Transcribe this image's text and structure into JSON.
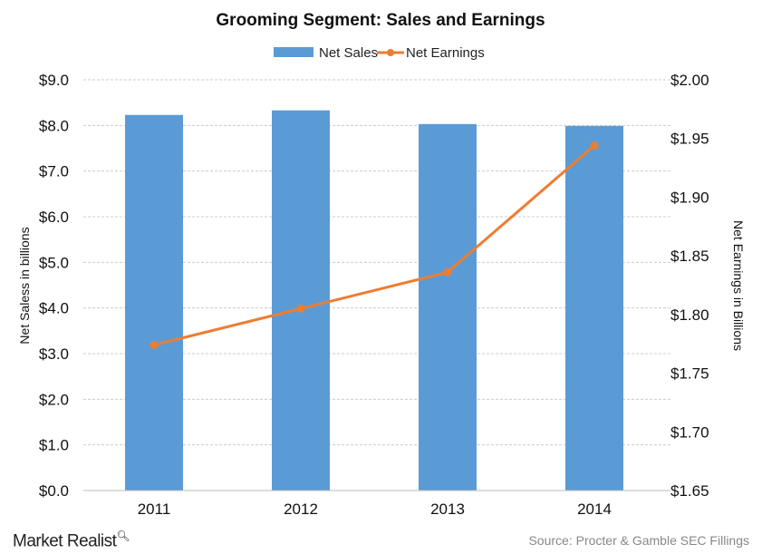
{
  "chart_data": {
    "type": "bar+line",
    "title": "Grooming Segment: Sales and Earnings",
    "categories": [
      "2011",
      "2012",
      "2013",
      "2014"
    ],
    "series": [
      {
        "name": "Net Sales",
        "type": "bar",
        "axis": "left",
        "color": "#5B9BD5",
        "values": [
          8.23,
          8.33,
          8.03,
          7.99
        ]
      },
      {
        "name": "Net Earnings",
        "type": "line",
        "axis": "right",
        "color": "#ED7D31",
        "values": [
          1.774,
          1.805,
          1.836,
          1.944
        ]
      }
    ],
    "ylabel": "Net Saless in billions",
    "y2label": "Net Earnings in Billions",
    "ylim": [
      0,
      9
    ],
    "y2lim": [
      1.65,
      2.0
    ],
    "yticks": [
      "$0.0",
      "$1.0",
      "$2.0",
      "$3.0",
      "$4.0",
      "$5.0",
      "$6.0",
      "$7.0",
      "$8.0",
      "$9.0"
    ],
    "y2ticks": [
      "$1.65",
      "$1.70",
      "$1.75",
      "$1.80",
      "$1.85",
      "$1.90",
      "$1.95",
      "$2.00"
    ],
    "grid": true,
    "legend": "top"
  },
  "footer": {
    "brand": "Market Realist",
    "source": "Source: Procter & Gamble SEC Fillings"
  }
}
